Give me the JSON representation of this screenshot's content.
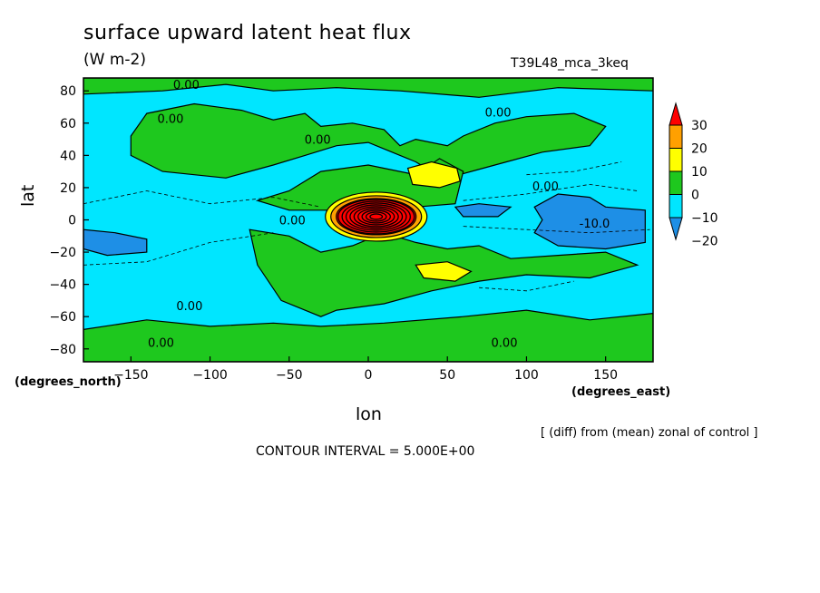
{
  "chart_data": {
    "type": "heatmap",
    "title": "surface upward latent heat flux",
    "units": "(W m-2)",
    "run_label": "T39L48_mca_3keq",
    "xlabel": "lon",
    "ylabel": "lat",
    "x_units_label": "(degrees_east)",
    "y_units_label": "(degrees_north)",
    "xlim": [
      -180,
      180
    ],
    "ylim": [
      -88,
      88
    ],
    "xticks": [
      -150,
      -100,
      -50,
      0,
      50,
      100,
      150
    ],
    "yticks": [
      -80,
      -60,
      -40,
      -20,
      0,
      20,
      40,
      60,
      80
    ],
    "legend": {
      "placement": "right",
      "levels": [
        -20,
        -10,
        0,
        10,
        20,
        30
      ],
      "colors": [
        "#1e8fe6",
        "#00e6ff",
        "#1ec81e",
        "#ffff00",
        "#ffa000",
        "#ff0000"
      ]
    },
    "contour_labels": [
      {
        "text": "0.00",
        "lon": -115,
        "lat": 84
      },
      {
        "text": "0.00",
        "lon": -125,
        "lat": 63
      },
      {
        "text": "0.00",
        "lon": -32,
        "lat": 50
      },
      {
        "text": "0.00",
        "lon": 82,
        "lat": 67
      },
      {
        "text": "0.00",
        "lon": 112,
        "lat": 21
      },
      {
        "text": "0.00",
        "lon": -48,
        "lat": 0
      },
      {
        "text": "0.00",
        "lon": -113,
        "lat": -53
      },
      {
        "text": "0.00",
        "lon": -131,
        "lat": -76
      },
      {
        "text": "0.00",
        "lon": 86,
        "lat": -76
      },
      {
        "text": "-10.0",
        "lon": 143,
        "lat": -2
      }
    ],
    "note": "[ (diff) from (mean) zonal of control ]",
    "contour_interval": "CONTOUR INTERVAL = 5.000E+00"
  }
}
